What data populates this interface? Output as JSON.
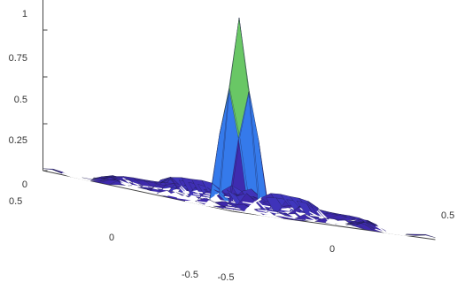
{
  "chart_data": {
    "type": "surface",
    "title": "",
    "xlabel": "",
    "ylabel": "",
    "zlabel": "",
    "z_ticks": [
      "0",
      "0.25",
      "0.5",
      "0.75",
      "1"
    ],
    "x_ticks": [
      "-0.5",
      "0",
      "0.5"
    ],
    "y_ticks": [
      "0.5",
      "0",
      "-0.5"
    ],
    "zlim": [
      0,
      1
    ],
    "xlim": [
      -0.5,
      0.5
    ],
    "ylim": [
      -0.5,
      0.5
    ],
    "grid_size": 21,
    "peak_value": 1,
    "peak_at": [
      0,
      0
    ],
    "function": "peaked bump with white gaps where ring values drop below zero (sinc-like)",
    "colormap": [
      "#3e26a8",
      "#4150e0",
      "#2f8ef0",
      "#17b1d1",
      "#2dc494",
      "#9fc93a",
      "#fbb42e",
      "#f3e61c"
    ]
  }
}
